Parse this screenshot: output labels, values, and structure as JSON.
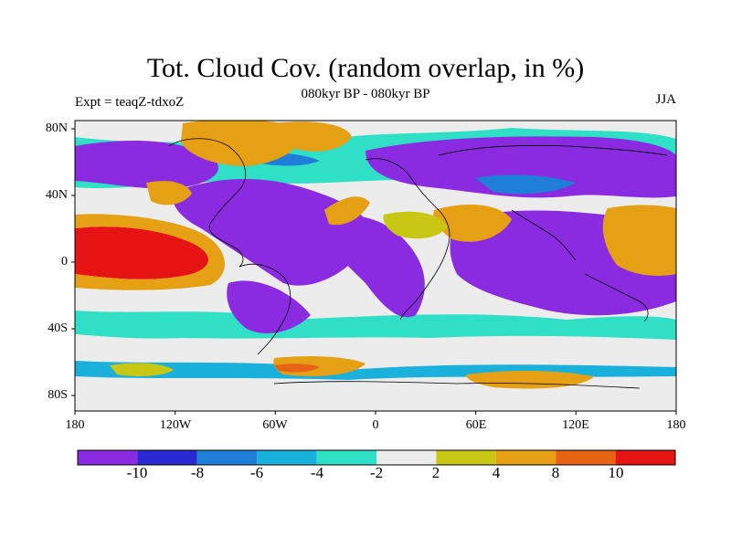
{
  "title": "Tot. Cloud Cov. (random overlap, in %)",
  "subtitle": "080kyr BP - 080kyr BP",
  "experiment": "Expt = teaqZ-tdxoZ",
  "season": "JJA",
  "lat_labels": [
    "80N",
    "40N",
    "0",
    "40S",
    "80S"
  ],
  "lon_labels": [
    "180",
    "120W",
    "60W",
    "0",
    "60E",
    "120E",
    "180"
  ],
  "colorbar": {
    "labels": [
      "-10",
      "-8",
      "-6",
      "-4",
      "-2",
      "2",
      "4",
      "8",
      "10"
    ],
    "colors": [
      "#8a2be2",
      "#2a2ad2",
      "#1e7ed8",
      "#19b0dc",
      "#2fe0c6",
      "#ececec",
      "#c8c814",
      "#e6a014",
      "#e66414",
      "#e61414"
    ]
  }
}
